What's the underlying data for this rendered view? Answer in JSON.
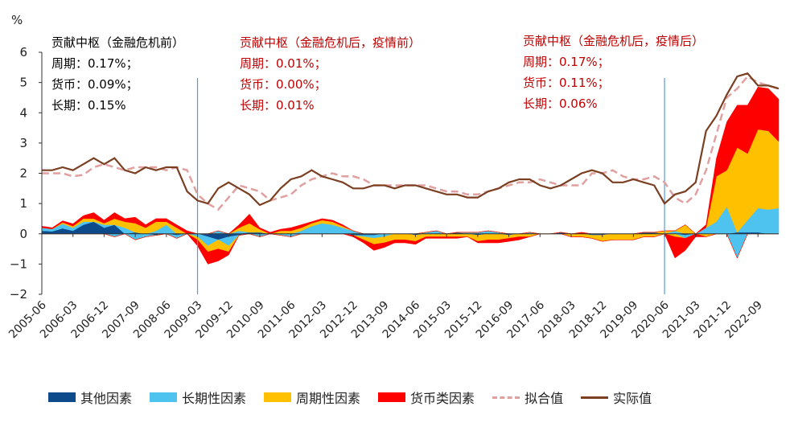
{
  "chart_data": {
    "type": "area",
    "y_unit": "%",
    "ylim": [
      -2,
      6
    ],
    "yticks": [
      "−2",
      "−1",
      "0",
      "1",
      "2",
      "3",
      "4",
      "5",
      "6"
    ],
    "x_tick_labels": [
      "2005-06",
      "2006-03",
      "2006-12",
      "2007-09",
      "2008-06",
      "2009-03",
      "2009-12",
      "2010-09",
      "2011-06",
      "2012-03",
      "2012-12",
      "2013-09",
      "2014-06",
      "2015-03",
      "2015-12",
      "2016-09",
      "2017-06",
      "2018-03",
      "2018-12",
      "2019-09",
      "2020-06",
      "2021-03",
      "2021-12",
      "2022-09"
    ],
    "x_start": "2005-06",
    "x_end": "2022-09",
    "frequency": "quarterly",
    "vlines": [
      "2009-03",
      "2020-06"
    ],
    "colors": {
      "other": "#0d4a8c",
      "long": "#4ec3f0",
      "cycle": "#ffc000",
      "monetary": "#ff0000",
      "fitted": "#e0a0a0",
      "actual": "#7b3f22",
      "vline": "#5b9bd5",
      "annotation_black": "#000000",
      "annotation_red": "#c00000"
    },
    "series": [
      {
        "name": "其他因素",
        "style": "area",
        "color": "#0d4a8c",
        "values": [
          0.1,
          0.1,
          0.2,
          0.3,
          0.2,
          0.3,
          0.4,
          0.3,
          0.0,
          0.2,
          0.0,
          0.0,
          -0.05,
          0.0,
          0.0,
          0.0,
          -0.05,
          0.0,
          0.0,
          -0.05,
          -0.1,
          0.0,
          0.0,
          0.0,
          0.0,
          0.0,
          0.0,
          0.0,
          0.0,
          0.0,
          0.0,
          0.0,
          0.0,
          0.0,
          0.0,
          0.0,
          0.0,
          0.05,
          0.05,
          0.05,
          0.05,
          0.05,
          0.0,
          0.0,
          -0.05,
          -0.05,
          -0.05,
          0.0,
          0.05,
          0.05,
          0.05,
          0.05,
          0.05,
          0.0,
          0.0,
          0.0,
          -0.05,
          -0.05,
          -0.05,
          -0.05,
          0.0,
          0.0,
          0.0,
          0.0,
          0.0,
          0.0,
          0.0,
          0.05,
          0.05,
          -0.05,
          -0.05,
          -0.05,
          -0.05,
          -0.05,
          0.0,
          0.0,
          0.0,
          0.0,
          0.05,
          0.05,
          0.05,
          0.05,
          0.05,
          0.05,
          0.05,
          0.05,
          0.0,
          0.0,
          0.0,
          0.0,
          -0.05,
          -0.05,
          -0.05,
          -0.05,
          0.0,
          0.0,
          0.0,
          0.05,
          0.05,
          0.05,
          0.0,
          0.0,
          0.0,
          0.0,
          0.0,
          0.0,
          0.0,
          0.0,
          0.0,
          0.0,
          0.0,
          0.0,
          0.0,
          0.0,
          0.0,
          0.0,
          0.0,
          0.0,
          0.0,
          0.0,
          0.0,
          0.0,
          0.0,
          0.0,
          0.0,
          0.0,
          0.0,
          0.0,
          0.0,
          0.0,
          0.0,
          0.0,
          0.0,
          0.0,
          0.0,
          0.0,
          0.0,
          0.0,
          0.0,
          0.0,
          0.0,
          0.0,
          0.0,
          0.0,
          0.0,
          0.0,
          0.0,
          0.0
        ]
      },
      {
        "name": "长期性因素",
        "style": "area",
        "color": "#4ec3f0",
        "values": []
      },
      {
        "name": "周期性因素",
        "style": "area",
        "color": "#ffc000",
        "values": []
      },
      {
        "name": "货币类因素",
        "style": "area",
        "color": "#ff0000",
        "values": []
      },
      {
        "name": "拟合值",
        "style": "dashed-line",
        "color": "#e0a0a0",
        "values": []
      },
      {
        "name": "实际值",
        "style": "line",
        "color": "#7b3f22",
        "values": []
      }
    ],
    "quarterly": {
      "other": [
        0.1,
        0.08,
        0.18,
        0.1,
        0.3,
        0.4,
        0.2,
        0.3,
        0.0,
        0.05,
        0.0,
        -0.05,
        0.0,
        -0.05,
        0.0,
        0.0,
        -0.1,
        -0.2,
        -0.1,
        -0.05,
        0.05,
        0.05,
        0.0,
        0.0,
        0.0,
        0.0,
        0.0,
        0.0,
        0.0,
        0.0,
        -0.05,
        -0.05,
        -0.05,
        0.0,
        0.0,
        0.0,
        -0.05,
        0.0,
        0.0,
        0.0,
        0.05,
        0.0,
        -0.05,
        0.0,
        0.0,
        -0.05,
        0.0,
        0.0,
        0.0,
        0.0,
        0.05,
        0.0,
        0.0,
        -0.05,
        -0.05,
        0.0,
        0.0,
        0.0,
        0.05,
        0.05,
        0.0,
        0.0,
        -0.05,
        0.0,
        0.0,
        0.0,
        0.0,
        0.05,
        0.05,
        0.05
      ],
      "long": [
        0.1,
        0.08,
        0.15,
        0.1,
        0.1,
        0.0,
        0.1,
        -0.1,
        0.2,
        -0.2,
        -0.1,
        0.1,
        0.3,
        -0.1,
        0.0,
        -0.1,
        -0.3,
        0.1,
        -0.3,
        0.1,
        0.0,
        -0.1,
        0.0,
        -0.05,
        -0.1,
        0.1,
        0.25,
        0.35,
        0.3,
        0.2,
        0.1,
        -0.05,
        -0.1,
        -0.1,
        0.0,
        0.0,
        0.0,
        0.05,
        0.1,
        0.0,
        0.0,
        0.05,
        0.05,
        0.1,
        0.05,
        0.0,
        0.0,
        0.05,
        0.0,
        0.0,
        0.0,
        0.0,
        0.0,
        0.0,
        0.0,
        0.0,
        0.0,
        0.0,
        0.0,
        0.0,
        0.0,
        0.1,
        -0.1,
        0.0,
        0.2,
        0.4,
        0.9,
        -0.8,
        0.4,
        0.8,
        0.8,
        0.85
      ],
      "cycle": [
        0.0,
        0.0,
        0.05,
        0.05,
        0.1,
        0.1,
        0.05,
        0.2,
        0.2,
        0.3,
        0.2,
        0.3,
        0.1,
        0.2,
        0.0,
        -0.1,
        -0.2,
        -0.3,
        -0.2,
        0.1,
        0.3,
        0.1,
        0.0,
        0.1,
        0.1,
        0.1,
        0.1,
        0.1,
        0.1,
        0.05,
        0.0,
        -0.1,
        -0.2,
        -0.2,
        -0.2,
        -0.2,
        -0.2,
        -0.1,
        -0.1,
        -0.1,
        -0.1,
        -0.1,
        -0.2,
        -0.2,
        -0.2,
        -0.1,
        -0.1,
        -0.1,
        0.0,
        0.0,
        0.0,
        -0.1,
        -0.1,
        -0.1,
        -0.2,
        -0.2,
        -0.2,
        -0.2,
        -0.1,
        -0.1,
        0.1,
        -0.1,
        0.3,
        0.0,
        -0.1,
        1.5,
        1.2,
        2.8,
        2.2,
        2.6,
        2.6,
        2.2
      ],
      "monetary": [
        0.05,
        0.04,
        0.05,
        0.08,
        0.1,
        0.2,
        0.1,
        0.2,
        0.1,
        0.2,
        0.1,
        0.1,
        0.1,
        0.1,
        0.1,
        -0.2,
        -0.4,
        -0.4,
        -0.1,
        0.1,
        0.3,
        0.05,
        0.05,
        0.05,
        0.1,
        0.1,
        0.05,
        0.05,
        0.05,
        0.05,
        -0.05,
        -0.1,
        -0.2,
        -0.15,
        -0.1,
        -0.1,
        -0.1,
        -0.05,
        -0.05,
        -0.05,
        -0.05,
        0.0,
        -0.05,
        -0.1,
        -0.1,
        -0.1,
        -0.1,
        0.0,
        0.0,
        0.0,
        0.0,
        0.0,
        0.05,
        0.0,
        0.0,
        0.0,
        0.0,
        0.0,
        0.0,
        0.0,
        0.0,
        -0.7,
        -0.4,
        -0.1,
        0.1,
        0.6,
        1.6,
        1.4,
        1.6,
        1.4,
        1.4,
        1.4
      ],
      "fitted": [
        2.0,
        2.0,
        2.0,
        1.9,
        1.95,
        2.2,
        2.3,
        2.2,
        2.1,
        2.2,
        2.2,
        2.2,
        2.1,
        2.2,
        2.1,
        1.3,
        1.0,
        0.8,
        1.2,
        1.6,
        1.5,
        1.4,
        1.1,
        1.2,
        1.3,
        1.6,
        1.8,
        1.9,
        2.0,
        1.9,
        1.9,
        1.8,
        1.6,
        1.6,
        1.6,
        1.6,
        1.6,
        1.6,
        1.5,
        1.4,
        1.4,
        1.3,
        1.3,
        1.4,
        1.5,
        1.6,
        1.7,
        1.7,
        1.8,
        1.7,
        1.6,
        1.6,
        1.6,
        2.0,
        2.0,
        2.1,
        1.9,
        1.8,
        1.8,
        1.9,
        1.7,
        1.2,
        1.0,
        1.3,
        2.1,
        3.3,
        4.5,
        4.8,
        5.2,
        5.0,
        4.9,
        4.8
      ],
      "actual": [
        2.1,
        2.1,
        2.2,
        2.1,
        2.3,
        2.5,
        2.3,
        2.5,
        2.1,
        2.0,
        2.2,
        2.1,
        2.2,
        2.2,
        1.4,
        1.1,
        1.0,
        1.5,
        1.7,
        1.5,
        1.3,
        0.95,
        1.1,
        1.5,
        1.8,
        1.9,
        2.1,
        1.9,
        1.8,
        1.7,
        1.5,
        1.5,
        1.6,
        1.6,
        1.5,
        1.6,
        1.6,
        1.5,
        1.4,
        1.3,
        1.3,
        1.2,
        1.2,
        1.4,
        1.5,
        1.7,
        1.8,
        1.8,
        1.6,
        1.5,
        1.6,
        1.8,
        2.0,
        2.1,
        2.0,
        1.7,
        1.7,
        1.8,
        1.7,
        1.6,
        1.0,
        1.3,
        1.4,
        1.7,
        3.4,
        3.9,
        4.6,
        5.2,
        5.3,
        4.9,
        4.9,
        4.8
      ]
    },
    "annotations": [
      {
        "color": "#000000",
        "lines": [
          "贡献中枢（金融危机前）",
          "周期：0.17%；",
          "货币：0.09%；",
          "长期：0.15%"
        ]
      },
      {
        "color": "#c00000",
        "lines": [
          "贡献中枢（金融危机后，疫情前）",
          "周期：0.01%；",
          "货币：0.00%；",
          "长期：0.01%"
        ]
      },
      {
        "color": "#c00000",
        "lines": [
          "贡献中枢（金融危机后，疫情后）",
          "周期：0.17%；",
          "货币：0.11%；",
          "长期：0.06%"
        ]
      }
    ]
  },
  "legend": {
    "items": [
      {
        "label": "其他因素",
        "kind": "box",
        "color": "#0d4a8c"
      },
      {
        "label": "长期性因素",
        "kind": "box",
        "color": "#4ec3f0"
      },
      {
        "label": "周期性因素",
        "kind": "box",
        "color": "#ffc000"
      },
      {
        "label": "货币类因素",
        "kind": "box",
        "color": "#ff0000"
      },
      {
        "label": "拟合值",
        "kind": "dash",
        "color": "#e0a0a0"
      },
      {
        "label": "实际值",
        "kind": "line",
        "color": "#7b3f22"
      }
    ]
  }
}
